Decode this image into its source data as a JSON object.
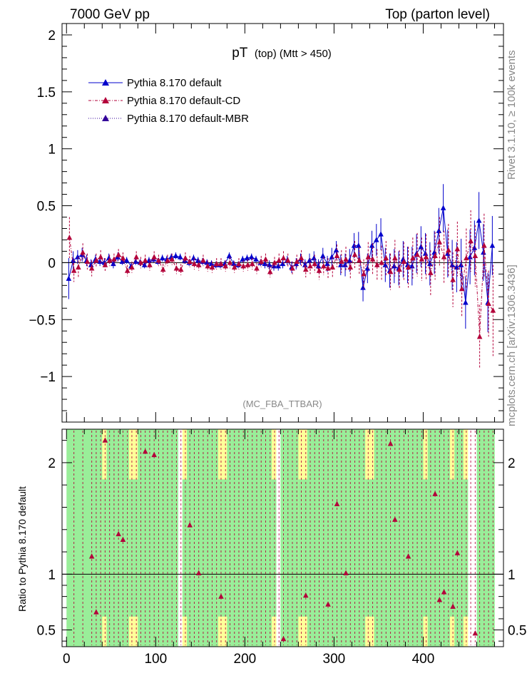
{
  "header": {
    "left_title": "7000 GeV pp",
    "right_title": "Top (parton level)"
  },
  "side_labels": {
    "rivet": "Rivet 3.1.10, ≥ 100k events",
    "mcplots": "mcplots.cern.ch [arXiv:1306.3436]"
  },
  "colors": {
    "default": "#0000cc",
    "cd": "#b3003a",
    "mbr": "#330099",
    "band_green": "#99ee99",
    "band_yellow": "#ffff99"
  },
  "chart_data": [
    {
      "type": "scatter",
      "panel": "main",
      "title_main": "pT",
      "title_sub": "(top) (Mtt > 450)",
      "watermark": "(MC_FBA_TTBAR)",
      "xlabel": "",
      "ylabel": "",
      "xlim": [
        -5,
        490
      ],
      "ylim": [
        -1.4,
        2.1
      ],
      "yticks": [
        "−1",
        "−0.5",
        "0",
        "0.5",
        "1",
        "1.5",
        "2"
      ],
      "ytick_values": [
        -1,
        -0.5,
        0,
        0.5,
        1,
        1.5,
        2
      ],
      "legend": [
        {
          "name": "Pythia 8.170 default",
          "style": "solid",
          "color": "#0000cc"
        },
        {
          "name": "Pythia 8.170 default-CD",
          "style": "dashdot",
          "color": "#b3003a"
        },
        {
          "name": "Pythia 8.170 default-MBR",
          "style": "dotted",
          "color": "#330099"
        }
      ],
      "x": [
        2.5,
        7.5,
        12.5,
        17.5,
        22.5,
        27.5,
        32.5,
        37.5,
        42.5,
        47.5,
        52.5,
        57.5,
        62.5,
        67.5,
        72.5,
        77.5,
        82.5,
        87.5,
        92.5,
        97.5,
        102.5,
        107.5,
        112.5,
        117.5,
        122.5,
        127.5,
        132.5,
        137.5,
        142.5,
        147.5,
        152.5,
        157.5,
        162.5,
        167.5,
        172.5,
        177.5,
        182.5,
        187.5,
        192.5,
        197.5,
        202.5,
        207.5,
        212.5,
        217.5,
        222.5,
        227.5,
        232.5,
        237.5,
        242.5,
        247.5,
        252.5,
        257.5,
        262.5,
        267.5,
        272.5,
        277.5,
        282.5,
        287.5,
        292.5,
        297.5,
        302.5,
        307.5,
        312.5,
        317.5,
        322.5,
        327.5,
        332.5,
        337.5,
        342.5,
        347.5,
        352.5,
        357.5,
        362.5,
        367.5,
        372.5,
        377.5,
        382.5,
        387.5,
        392.5,
        397.5,
        402.5,
        407.5,
        412.5,
        417.5,
        422.5,
        427.5,
        432.5,
        437.5,
        442.5,
        447.5,
        452.5,
        457.5,
        462.5,
        467.5,
        472.5,
        477.5
      ],
      "series": [
        {
          "name": "Pythia 8.170 default",
          "values": [
            -0.14,
            0.02,
            0.05,
            0.07,
            0.02,
            -0.02,
            0.03,
            0.01,
            0.0,
            0.04,
            -0.01,
            0.05,
            0.01,
            0.02,
            -0.03,
            0.01,
            0.0,
            -0.02,
            0.02,
            0.03,
            0.01,
            0.04,
            0.03,
            0.05,
            0.06,
            0.05,
            0.02,
            0.0,
            0.04,
            0.02,
            0.01,
            0.0,
            -0.01,
            -0.02,
            -0.02,
            -0.01,
            0.06,
            -0.01,
            -0.02,
            0.03,
            0.04,
            0.05,
            0.03,
            0.0,
            -0.01,
            -0.02,
            -0.03,
            -0.03,
            -0.01,
            0.02,
            -0.04,
            -0.01,
            0.03,
            -0.02,
            0.02,
            0.04,
            -0.03,
            0.06,
            -0.01,
            0.05,
            0.11,
            -0.02,
            -0.02,
            0.02,
            0.15,
            0.15,
            -0.22,
            -0.05,
            0.15,
            0.2,
            0.25,
            -0.02,
            -0.07,
            -0.03,
            -0.05,
            0.03,
            -0.02,
            -0.03,
            0.08,
            0.14,
            0.08,
            -0.01,
            0.09,
            0.28,
            0.48,
            0.08,
            -0.02,
            -0.04,
            -0.02,
            -0.35,
            0.05,
            0.13,
            0.37,
            0.09,
            -0.35,
            0.15
          ],
          "errors": [
            0.18,
            0.08,
            0.06,
            0.06,
            0.05,
            0.05,
            0.04,
            0.04,
            0.04,
            0.04,
            0.04,
            0.04,
            0.03,
            0.03,
            0.03,
            0.03,
            0.03,
            0.03,
            0.03,
            0.03,
            0.03,
            0.03,
            0.03,
            0.03,
            0.03,
            0.03,
            0.03,
            0.03,
            0.03,
            0.03,
            0.03,
            0.03,
            0.03,
            0.03,
            0.03,
            0.03,
            0.03,
            0.03,
            0.03,
            0.03,
            0.03,
            0.03,
            0.03,
            0.03,
            0.04,
            0.04,
            0.04,
            0.04,
            0.04,
            0.04,
            0.05,
            0.05,
            0.05,
            0.05,
            0.06,
            0.06,
            0.06,
            0.07,
            0.07,
            0.08,
            0.08,
            0.09,
            0.1,
            0.1,
            0.11,
            0.12,
            0.12,
            0.13,
            0.13,
            0.14,
            0.14,
            0.15,
            0.15,
            0.15,
            0.15,
            0.16,
            0.16,
            0.17,
            0.17,
            0.18,
            0.18,
            0.19,
            0.19,
            0.2,
            0.21,
            0.21,
            0.22,
            0.22,
            0.23,
            0.23,
            0.24,
            0.24,
            0.25,
            0.25,
            0.26,
            0.26
          ]
        },
        {
          "name": "Pythia 8.170 default-CD",
          "values": [
            0.22,
            -0.07,
            -0.04,
            0.09,
            0.01,
            -0.05,
            0.02,
            0.05,
            -0.02,
            0.02,
            0.03,
            0.07,
            0.04,
            -0.07,
            -0.04,
            0.05,
            0.0,
            0.02,
            -0.02,
            0.05,
            0.02,
            -0.06,
            0.02,
            0.03,
            -0.05,
            -0.06,
            0.04,
            0.01,
            -0.01,
            -0.02,
            0.02,
            -0.03,
            -0.04,
            -0.01,
            -0.01,
            -0.03,
            0.0,
            -0.04,
            -0.01,
            -0.03,
            -0.02,
            -0.01,
            -0.05,
            0.01,
            0.03,
            -0.08,
            0.0,
            0.02,
            0.04,
            0.02,
            -0.05,
            0.01,
            0.04,
            -0.06,
            -0.03,
            -0.01,
            -0.07,
            -0.03,
            -0.05,
            -0.04,
            0.06,
            0.01,
            0.03,
            -0.04,
            0.07,
            0.02,
            -0.1,
            0.05,
            0.03,
            -0.02,
            0.0,
            0.04,
            -0.08,
            0.04,
            -0.06,
            0.01,
            -0.04,
            0.04,
            0.07,
            0.03,
            0.05,
            -0.09,
            0.06,
            0.18,
            0.05,
            0.11,
            -0.15,
            0.12,
            -0.23,
            0.04,
            0.19,
            0.06,
            -0.65,
            0.15,
            -0.36,
            -0.42
          ],
          "errors": [
            0.18,
            0.1,
            0.09,
            0.08,
            0.07,
            0.07,
            0.06,
            0.06,
            0.06,
            0.05,
            0.05,
            0.05,
            0.05,
            0.05,
            0.05,
            0.05,
            0.05,
            0.05,
            0.05,
            0.05,
            0.05,
            0.05,
            0.05,
            0.05,
            0.05,
            0.05,
            0.05,
            0.05,
            0.05,
            0.05,
            0.05,
            0.05,
            0.05,
            0.05,
            0.05,
            0.05,
            0.05,
            0.05,
            0.05,
            0.05,
            0.05,
            0.05,
            0.05,
            0.05,
            0.05,
            0.05,
            0.05,
            0.06,
            0.06,
            0.06,
            0.06,
            0.06,
            0.07,
            0.07,
            0.07,
            0.08,
            0.08,
            0.08,
            0.09,
            0.09,
            0.1,
            0.1,
            0.11,
            0.11,
            0.12,
            0.12,
            0.13,
            0.13,
            0.14,
            0.14,
            0.15,
            0.15,
            0.16,
            0.16,
            0.17,
            0.17,
            0.18,
            0.18,
            0.19,
            0.19,
            0.2,
            0.2,
            0.21,
            0.22,
            0.23,
            0.23,
            0.24,
            0.24,
            0.25,
            0.26,
            0.27,
            0.27,
            0.28,
            0.28,
            0.29,
            0.4
          ]
        }
      ]
    },
    {
      "type": "scatter",
      "panel": "ratio",
      "ylabel": "Ratio to Pythia 8.170 default",
      "xlim": [
        -5,
        490
      ],
      "ylim": [
        0.35,
        2.3
      ],
      "yticks": [
        "0.5",
        "1",
        "2"
      ],
      "ytick_values": [
        0.5,
        1,
        2
      ],
      "xticks": [
        "0",
        "100",
        "200",
        "300",
        "400"
      ],
      "xtick_values": [
        0,
        100,
        200,
        300,
        400
      ],
      "reference_line": 1,
      "band": {
        "green_lo": 0.35,
        "green_hi": 2.3,
        "yellow_bins": [
          8,
          14,
          15,
          26,
          34,
          35,
          46,
          52,
          53,
          67,
          68,
          80,
          86,
          89
        ],
        "white_bins": [
          25,
          47,
          90,
          91
        ]
      },
      "series": [
        {
          "name": "Pythia 8.170 default-CD",
          "points": [
            {
              "x": 27.5,
              "y": 1.16
            },
            {
              "x": 32.5,
              "y": 0.66
            },
            {
              "x": 42.5,
              "y": 2.2
            },
            {
              "x": 57.5,
              "y": 1.36
            },
            {
              "x": 62.5,
              "y": 1.31
            },
            {
              "x": 87.5,
              "y": 2.1
            },
            {
              "x": 97.5,
              "y": 2.07
            },
            {
              "x": 137.5,
              "y": 1.44
            },
            {
              "x": 147.5,
              "y": 1.01
            },
            {
              "x": 172.5,
              "y": 0.8
            },
            {
              "x": 242.5,
              "y": 0.42
            },
            {
              "x": 267.5,
              "y": 0.81
            },
            {
              "x": 292.5,
              "y": 0.73
            },
            {
              "x": 302.5,
              "y": 1.63
            },
            {
              "x": 312.5,
              "y": 1.01
            },
            {
              "x": 362.5,
              "y": 2.17
            },
            {
              "x": 367.5,
              "y": 1.49
            },
            {
              "x": 382.5,
              "y": 1.16
            },
            {
              "x": 412.5,
              "y": 1.72
            },
            {
              "x": 417.5,
              "y": 0.77
            },
            {
              "x": 422.5,
              "y": 0.84
            },
            {
              "x": 432.5,
              "y": 0.71
            },
            {
              "x": 437.5,
              "y": 1.19
            },
            {
              "x": 457.5,
              "y": 0.47
            }
          ]
        }
      ]
    }
  ]
}
